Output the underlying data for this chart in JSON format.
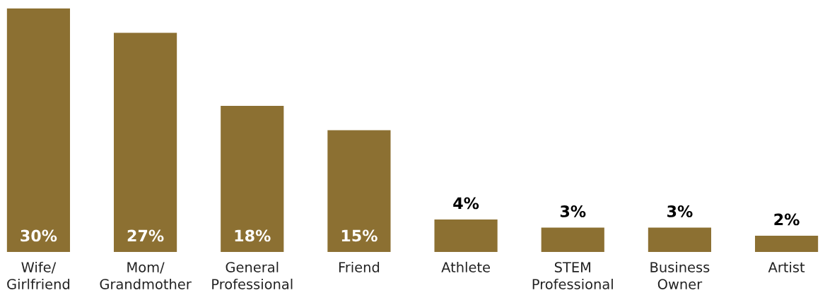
{
  "chart_data": {
    "type": "bar",
    "categories": [
      "Wife/\nGirlfriend",
      "Mom/\nGrandmother",
      "General\nProfessional",
      "Friend",
      "Athlete",
      "STEM\nProfessional",
      "Business\nOwner",
      "Artist"
    ],
    "values": [
      30,
      27,
      18,
      15,
      4,
      3,
      3,
      2
    ],
    "value_labels": [
      "30%",
      "27%",
      "18%",
      "15%",
      "4%",
      "3%",
      "3%",
      "2%"
    ],
    "color": "#8c7032",
    "grid": false,
    "legend": false
  }
}
